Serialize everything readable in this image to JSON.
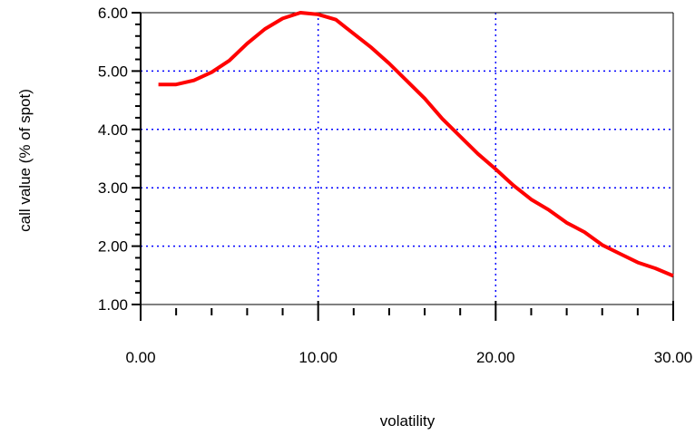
{
  "chart_data": {
    "type": "line",
    "title": "",
    "xlabel": "volatility",
    "ylabel": "call value (% of spot)",
    "xlim": [
      0,
      30
    ],
    "ylim": [
      1,
      6
    ],
    "x_ticks": [
      0,
      10,
      20,
      30
    ],
    "x_tick_labels": [
      "0.00",
      "10.00",
      "20.00",
      "30.00"
    ],
    "y_ticks": [
      1,
      2,
      3,
      4,
      5,
      6
    ],
    "y_tick_labels": [
      "1.00",
      "2.00",
      "3.00",
      "4.00",
      "5.00",
      "6.00"
    ],
    "grid": "dotted, at x = 10 and 20, y = 2 to 5",
    "colors": {
      "line": "#ff0000",
      "grid": "#0000ff",
      "axis": "#000000"
    },
    "series": [
      {
        "x": [
          1,
          2,
          3,
          4,
          5,
          6,
          7,
          8,
          9,
          10,
          11,
          12,
          13,
          14,
          15,
          16,
          17,
          18,
          19,
          20,
          21,
          22,
          23,
          24,
          25,
          26,
          27,
          28,
          29,
          30
        ],
        "values": [
          4.77,
          4.77,
          4.84,
          4.98,
          5.18,
          5.47,
          5.72,
          5.9,
          6.0,
          5.97,
          5.88,
          5.64,
          5.4,
          5.13,
          4.83,
          4.53,
          4.18,
          3.88,
          3.58,
          3.32,
          3.04,
          2.8,
          2.62,
          2.4,
          2.24,
          2.02,
          1.87,
          1.72,
          1.62,
          1.49
        ]
      }
    ]
  }
}
